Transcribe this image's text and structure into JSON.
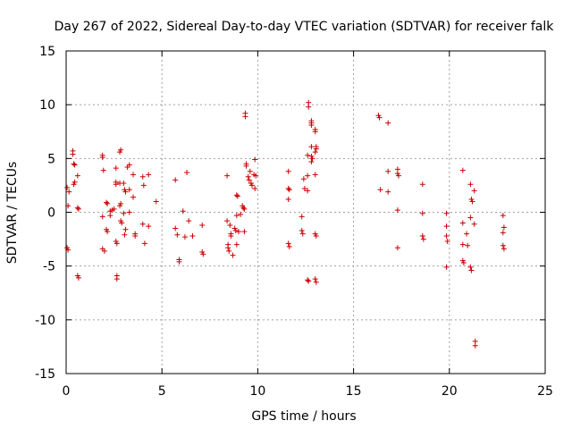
{
  "chart_data": {
    "type": "scatter",
    "title": "Day 267 of 2022, Sidereal Day-to-day VTEC variation (SDTVAR) for receiver falk",
    "xlabel": "GPS time / hours",
    "ylabel": "SDTVAR / TECUs",
    "xlim": [
      0,
      25
    ],
    "ylim": [
      -15,
      15
    ],
    "xticks": [
      0,
      5,
      10,
      15,
      20,
      25
    ],
    "yticks": [
      -15,
      -10,
      -5,
      0,
      5,
      10,
      15
    ],
    "grid": true,
    "marker": "+",
    "color": "#cc0000",
    "series": [
      {
        "name": "SDTVAR",
        "points": [
          [
            0.05,
            2.3
          ],
          [
            0.05,
            -3.3
          ],
          [
            0.1,
            -3.5
          ],
          [
            0.15,
            1.9
          ],
          [
            0.1,
            0.6
          ],
          [
            0.35,
            5.7
          ],
          [
            0.35,
            5.4
          ],
          [
            0.4,
            4.5
          ],
          [
            0.45,
            4.4
          ],
          [
            0.4,
            2.6
          ],
          [
            0.45,
            2.8
          ],
          [
            0.6,
            3.4
          ],
          [
            0.6,
            0.4
          ],
          [
            0.65,
            0.3
          ],
          [
            0.6,
            -5.9
          ],
          [
            0.65,
            -6.1
          ],
          [
            1.9,
            5.1
          ],
          [
            1.9,
            5.3
          ],
          [
            1.95,
            3.9
          ],
          [
            1.9,
            -0.4
          ],
          [
            1.9,
            -3.4
          ],
          [
            2.0,
            -3.6
          ],
          [
            2.1,
            0.9
          ],
          [
            2.15,
            0.8
          ],
          [
            2.1,
            -1.6
          ],
          [
            2.15,
            -1.8
          ],
          [
            2.3,
            0.1
          ],
          [
            2.3,
            -0.3
          ],
          [
            2.4,
            0.2
          ],
          [
            2.5,
            0.3
          ],
          [
            2.6,
            2.6
          ],
          [
            2.6,
            2.8
          ],
          [
            2.6,
            4.1
          ],
          [
            2.6,
            -2.7
          ],
          [
            2.65,
            -2.9
          ],
          [
            2.65,
            -5.9
          ],
          [
            2.65,
            -6.2
          ],
          [
            2.8,
            5.6
          ],
          [
            2.85,
            5.8
          ],
          [
            2.8,
            2.7
          ],
          [
            2.85,
            0.8
          ],
          [
            2.8,
            0.6
          ],
          [
            2.85,
            -0.8
          ],
          [
            2.9,
            -1.0
          ],
          [
            3.0,
            2.7
          ],
          [
            3.05,
            2.1
          ],
          [
            3.1,
            1.9
          ],
          [
            3.0,
            -0.1
          ],
          [
            3.1,
            -1.6
          ],
          [
            3.05,
            -2.1
          ],
          [
            3.2,
            4.2
          ],
          [
            3.3,
            4.4
          ],
          [
            3.3,
            2.1
          ],
          [
            3.3,
            0.0
          ],
          [
            3.5,
            3.5
          ],
          [
            3.5,
            1.4
          ],
          [
            3.6,
            -2.0
          ],
          [
            3.6,
            -2.2
          ],
          [
            4.0,
            3.3
          ],
          [
            4.05,
            2.5
          ],
          [
            4.0,
            -1.1
          ],
          [
            4.1,
            -2.9
          ],
          [
            4.3,
            3.5
          ],
          [
            4.3,
            -1.3
          ],
          [
            4.7,
            1.0
          ],
          [
            5.7,
            3.0
          ],
          [
            5.7,
            -1.5
          ],
          [
            5.8,
            -2.1
          ],
          [
            5.9,
            -4.4
          ],
          [
            5.9,
            -4.6
          ],
          [
            6.1,
            0.1
          ],
          [
            6.2,
            -2.3
          ],
          [
            6.3,
            3.7
          ],
          [
            6.4,
            -0.8
          ],
          [
            6.6,
            -2.2
          ],
          [
            7.1,
            -1.2
          ],
          [
            7.1,
            -3.7
          ],
          [
            7.15,
            -3.9
          ],
          [
            8.4,
            3.4
          ],
          [
            8.4,
            -0.8
          ],
          [
            8.45,
            -3.0
          ],
          [
            8.45,
            -3.3
          ],
          [
            8.5,
            -3.6
          ],
          [
            8.55,
            -1.2
          ],
          [
            8.6,
            -2.0
          ],
          [
            8.6,
            -2.2
          ],
          [
            8.7,
            -4.0
          ],
          [
            8.8,
            -1.5
          ],
          [
            8.85,
            -1.7
          ],
          [
            8.9,
            1.6
          ],
          [
            8.95,
            1.5
          ],
          [
            8.9,
            -0.3
          ],
          [
            8.9,
            -3.0
          ],
          [
            9.0,
            -1.8
          ],
          [
            9.1,
            -0.2
          ],
          [
            9.2,
            0.6
          ],
          [
            9.25,
            0.4
          ],
          [
            9.3,
            0.3
          ],
          [
            9.3,
            -1.8
          ],
          [
            9.35,
            9.2
          ],
          [
            9.35,
            8.9
          ],
          [
            9.4,
            4.5
          ],
          [
            9.4,
            4.3
          ],
          [
            9.5,
            3.3
          ],
          [
            9.55,
            3.0
          ],
          [
            9.6,
            3.8
          ],
          [
            9.65,
            2.7
          ],
          [
            9.7,
            2.5
          ],
          [
            9.8,
            3.5
          ],
          [
            9.85,
            4.9
          ],
          [
            9.85,
            2.2
          ],
          [
            9.9,
            3.4
          ],
          [
            11.6,
            3.8
          ],
          [
            11.6,
            2.2
          ],
          [
            11.65,
            2.1
          ],
          [
            11.6,
            1.2
          ],
          [
            11.6,
            -2.9
          ],
          [
            11.65,
            -3.2
          ],
          [
            12.3,
            -0.4
          ],
          [
            12.3,
            -1.7
          ],
          [
            12.35,
            -2.0
          ],
          [
            12.4,
            3.1
          ],
          [
            12.45,
            2.2
          ],
          [
            12.6,
            3.4
          ],
          [
            12.6,
            2.0
          ],
          [
            12.65,
            10.2
          ],
          [
            12.65,
            9.8
          ],
          [
            12.6,
            5.3
          ],
          [
            12.6,
            -6.3
          ],
          [
            12.65,
            -6.4
          ],
          [
            12.8,
            8.3
          ],
          [
            12.8,
            8.5
          ],
          [
            12.8,
            8.1
          ],
          [
            12.8,
            6.1
          ],
          [
            12.8,
            5.2
          ],
          [
            12.8,
            4.7
          ],
          [
            12.85,
            5.0
          ],
          [
            13.0,
            7.7
          ],
          [
            13.0,
            7.5
          ],
          [
            13.05,
            6.1
          ],
          [
            13.05,
            5.9
          ],
          [
            13.0,
            5.6
          ],
          [
            13.0,
            3.5
          ],
          [
            13.0,
            -2.0
          ],
          [
            13.05,
            -2.2
          ],
          [
            13.0,
            -6.2
          ],
          [
            13.05,
            -6.5
          ],
          [
            16.3,
            9.0
          ],
          [
            16.35,
            8.8
          ],
          [
            16.4,
            2.1
          ],
          [
            16.8,
            8.3
          ],
          [
            16.8,
            3.8
          ],
          [
            16.8,
            1.9
          ],
          [
            17.3,
            4.0
          ],
          [
            17.3,
            3.6
          ],
          [
            17.35,
            3.4
          ],
          [
            17.3,
            0.2
          ],
          [
            17.3,
            -3.3
          ],
          [
            18.6,
            2.6
          ],
          [
            18.6,
            -0.1
          ],
          [
            18.6,
            -2.2
          ],
          [
            18.65,
            -2.5
          ],
          [
            19.85,
            -0.1
          ],
          [
            19.85,
            -1.3
          ],
          [
            19.85,
            -2.2
          ],
          [
            19.9,
            -2.7
          ],
          [
            19.85,
            -5.1
          ],
          [
            20.7,
            3.9
          ],
          [
            20.7,
            -1.0
          ],
          [
            20.7,
            -3.0
          ],
          [
            20.7,
            -4.5
          ],
          [
            20.75,
            -4.7
          ],
          [
            20.9,
            -2.0
          ],
          [
            20.95,
            -3.1
          ],
          [
            21.1,
            2.6
          ],
          [
            21.15,
            1.2
          ],
          [
            21.2,
            1.0
          ],
          [
            21.1,
            -0.5
          ],
          [
            21.1,
            -5.1
          ],
          [
            21.15,
            -5.4
          ],
          [
            21.3,
            2.0
          ],
          [
            21.3,
            -1.1
          ],
          [
            21.35,
            -12.0
          ],
          [
            21.35,
            -12.4
          ],
          [
            22.8,
            -0.3
          ],
          [
            22.85,
            -1.4
          ],
          [
            22.8,
            -1.9
          ],
          [
            22.8,
            -3.1
          ],
          [
            22.85,
            -3.4
          ]
        ]
      }
    ]
  }
}
